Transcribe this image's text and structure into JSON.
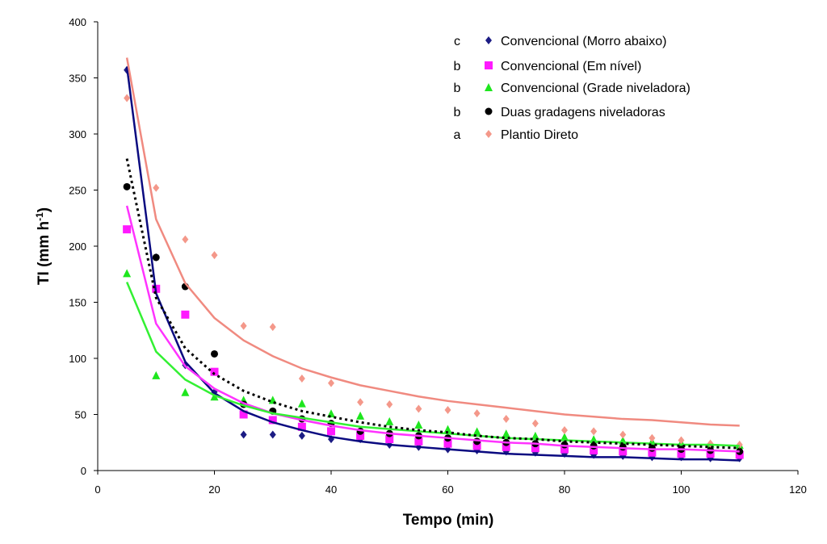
{
  "chart_data": {
    "type": "scatter",
    "x_label": "Tempo (min)",
    "y_label": [
      "TI (mm h",
      "-1",
      ")"
    ],
    "x": [
      5,
      10,
      15,
      20,
      25,
      30,
      35,
      40,
      45,
      50,
      55,
      60,
      65,
      70,
      75,
      80,
      85,
      90,
      95,
      100,
      105,
      110
    ],
    "xlim": [
      0,
      120
    ],
    "xticks": [
      0,
      20,
      40,
      60,
      80,
      100,
      120
    ],
    "ylim": [
      0,
      400
    ],
    "yticks": [
      0,
      50,
      100,
      150,
      200,
      250,
      300,
      350,
      400
    ],
    "series": [
      {
        "group": "c",
        "name": "Convencional (Morro abaixo)",
        "color": "#1c1c84",
        "line_color": "#0a0a80",
        "marker": "diamond",
        "line_style": "solid",
        "values": [
          357,
          190,
          94,
          70,
          32,
          32,
          31,
          28,
          28,
          23,
          21,
          19,
          18,
          17,
          16,
          15,
          14,
          13,
          12,
          12,
          11,
          11
        ],
        "trend": [
          360,
          158,
          97,
          69,
          53,
          43,
          36,
          30,
          26,
          23,
          21,
          19,
          17,
          15,
          14,
          13,
          12,
          12,
          11,
          10,
          10,
          9
        ]
      },
      {
        "group": "b",
        "name": "Convencional (Em nível)",
        "color": "#ff1aff",
        "line_color": "#ff33ff",
        "marker": "square",
        "line_style": "solid",
        "values": [
          215,
          162,
          139,
          88,
          50,
          45,
          39,
          35,
          31,
          28,
          26,
          24,
          22,
          21,
          20,
          19,
          18,
          17,
          16,
          15,
          15,
          14
        ],
        "trend": [
          236,
          131,
          93,
          73,
          60,
          51,
          45,
          40,
          36,
          33,
          31,
          29,
          27,
          25,
          24,
          22,
          21,
          20,
          19,
          19,
          18,
          17
        ]
      },
      {
        "group": "b",
        "name": "Convencional (Grade niveladora)",
        "color": "#1ee61e",
        "line_color": "#33f033",
        "marker": "triangle",
        "line_style": "solid",
        "values": [
          176,
          85,
          70,
          66,
          63,
          63,
          60,
          51,
          49,
          44,
          41,
          37,
          35,
          33,
          31,
          30,
          28,
          27,
          26,
          25,
          24,
          23
        ],
        "trend": [
          168,
          106,
          81,
          67,
          58,
          51,
          47,
          43,
          39,
          37,
          35,
          33,
          31,
          29,
          28,
          27,
          26,
          25,
          24,
          23,
          23,
          22
        ]
      },
      {
        "group": "b",
        "name": "Duas gradagens niveladoras",
        "color": "#000000",
        "line_color": "#000000",
        "marker": "circle",
        "line_style": "dotted",
        "values": [
          253,
          190,
          164,
          104,
          59,
          53,
          46,
          42,
          35,
          33,
          31,
          29,
          26,
          25,
          24,
          23,
          22,
          21,
          20,
          19,
          18,
          17
        ],
        "trend": [
          278,
          154,
          109,
          86,
          71,
          61,
          53,
          48,
          43,
          39,
          36,
          34,
          31,
          29,
          28,
          26,
          25,
          24,
          23,
          22,
          21,
          20
        ]
      },
      {
        "group": "a",
        "name": "Plantio Direto",
        "color": "#f4988a",
        "line_color": "#f08a80",
        "marker": "diamond",
        "line_style": "solid",
        "values": [
          332,
          252,
          206,
          192,
          129,
          128,
          82,
          78,
          61,
          59,
          55,
          54,
          51,
          46,
          42,
          36,
          35,
          32,
          29,
          27,
          24,
          23
        ],
        "trend": [
          368,
          224,
          167,
          136,
          116,
          102,
          91,
          83,
          76,
          71,
          66,
          62,
          59,
          56,
          53,
          50,
          48,
          46,
          45,
          43,
          41,
          40
        ]
      }
    ]
  }
}
